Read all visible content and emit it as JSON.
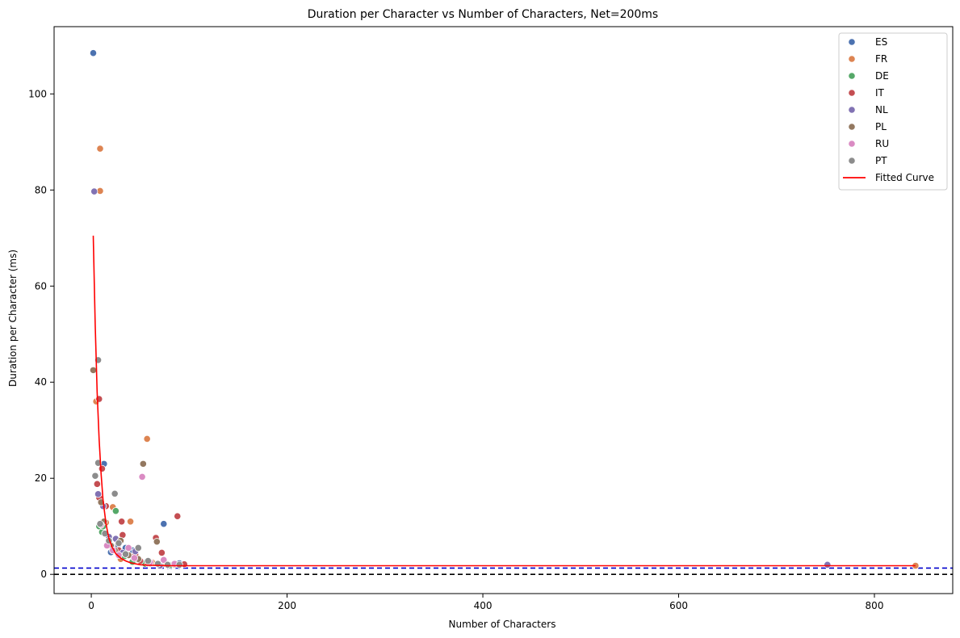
{
  "chart_data": {
    "type": "scatter",
    "title": "Duration per Character vs Number of Characters, Net=200ms",
    "xlabel": "Number of Characters",
    "ylabel": "Duration per Character (ms)",
    "xlim": [
      -38,
      880
    ],
    "ylim": [
      -4,
      114
    ],
    "xticks": [
      0,
      200,
      400,
      600,
      800
    ],
    "yticks": [
      0,
      20,
      40,
      60,
      80,
      100
    ],
    "grid": false,
    "legend_position": "top-right",
    "series": [
      {
        "name": "ES",
        "color": "#4c72b0",
        "points": [
          [
            2,
            108.5
          ],
          [
            13,
            23
          ],
          [
            20,
            4.6
          ],
          [
            27,
            6
          ],
          [
            30,
            4.8
          ],
          [
            35,
            5.5
          ],
          [
            42,
            5
          ],
          [
            48,
            3
          ],
          [
            55,
            2.4
          ],
          [
            74,
            10.5
          ],
          [
            80,
            2
          ],
          [
            90,
            2.3
          ]
        ]
      },
      {
        "name": "FR",
        "color": "#dd8452",
        "points": [
          [
            5,
            36
          ],
          [
            9,
            88.6
          ],
          [
            9,
            79.8
          ],
          [
            12,
            11
          ],
          [
            15,
            10.8
          ],
          [
            22,
            14
          ],
          [
            30,
            3.2
          ],
          [
            40,
            11
          ],
          [
            45,
            3.5
          ],
          [
            57,
            28.2
          ],
          [
            62,
            2.5
          ],
          [
            75,
            2.2
          ],
          [
            90,
            2
          ],
          [
            842,
            1.8
          ]
        ]
      },
      {
        "name": "DE",
        "color": "#55a868",
        "points": [
          [
            8,
            10
          ],
          [
            11,
            8.8
          ],
          [
            12,
            10
          ],
          [
            18,
            7.5
          ],
          [
            25,
            13.2
          ],
          [
            28,
            7
          ],
          [
            34,
            3.8
          ],
          [
            42,
            2.6
          ],
          [
            55,
            2.2
          ],
          [
            70,
            2.1
          ],
          [
            80,
            1.9
          ]
        ]
      },
      {
        "name": "IT",
        "color": "#c44e52",
        "points": [
          [
            6,
            18.8
          ],
          [
            8,
            36.5
          ],
          [
            8,
            16
          ],
          [
            11,
            22
          ],
          [
            15,
            14.2
          ],
          [
            21,
            5.8
          ],
          [
            28,
            5
          ],
          [
            31,
            11
          ],
          [
            32,
            8.2
          ],
          [
            45,
            4.2
          ],
          [
            50,
            2.8
          ],
          [
            58,
            2.3
          ],
          [
            66,
            7.6
          ],
          [
            72,
            4.5
          ],
          [
            88,
            12.1
          ],
          [
            95,
            2.1
          ]
        ]
      },
      {
        "name": "NL",
        "color": "#8172b3",
        "points": [
          [
            3,
            79.7
          ],
          [
            7,
            16.7
          ],
          [
            12,
            14.2
          ],
          [
            18,
            7.8
          ],
          [
            25,
            7.4
          ],
          [
            32,
            4.5
          ],
          [
            45,
            4.8
          ],
          [
            60,
            2.3
          ],
          [
            70,
            1.8
          ],
          [
            752,
            2
          ]
        ]
      },
      {
        "name": "PL",
        "color": "#937860",
        "points": [
          [
            2,
            42.5
          ],
          [
            10,
            15
          ],
          [
            13,
            11
          ],
          [
            20,
            6
          ],
          [
            24,
            5
          ],
          [
            30,
            7
          ],
          [
            38,
            4
          ],
          [
            48,
            3.2
          ],
          [
            53,
            23
          ],
          [
            60,
            2.6
          ],
          [
            67,
            6.8
          ],
          [
            85,
            2
          ]
        ]
      },
      {
        "name": "RU",
        "color": "#da8bc3",
        "points": [
          [
            10,
            10.3
          ],
          [
            16,
            6
          ],
          [
            22,
            5
          ],
          [
            28,
            4
          ],
          [
            38,
            5.5
          ],
          [
            44,
            3.4
          ],
          [
            52,
            20.3
          ],
          [
            60,
            2.5
          ],
          [
            74,
            3
          ],
          [
            85,
            2.2
          ]
        ]
      },
      {
        "name": "PT",
        "color": "#8c8c8c",
        "points": [
          [
            4,
            20.5
          ],
          [
            7,
            44.6
          ],
          [
            7,
            23.2
          ],
          [
            9,
            10.5
          ],
          [
            14,
            8.5
          ],
          [
            18,
            7
          ],
          [
            24,
            16.8
          ],
          [
            28,
            6.5
          ],
          [
            35,
            4.2
          ],
          [
            48,
            5.5
          ],
          [
            58,
            2.8
          ],
          [
            68,
            2.2
          ],
          [
            78,
            2
          ],
          [
            90,
            2
          ]
        ]
      }
    ],
    "fitted_curve": {
      "name": "Fitted Curve",
      "color": "#ff0000",
      "x": [
        2,
        4,
        6,
        8,
        10,
        12,
        15,
        18,
        21,
        25,
        30,
        35,
        40,
        50,
        60,
        80,
        100,
        200,
        400,
        600,
        842
      ],
      "y": [
        70.5,
        52,
        38,
        28,
        21,
        15.5,
        10.5,
        7.5,
        5.8,
        4.3,
        3.4,
        2.8,
        2.4,
        2.0,
        1.9,
        1.8,
        1.8,
        1.8,
        1.8,
        1.8,
        1.8
      ]
    },
    "reference_lines": [
      {
        "y": 1.3,
        "color": "#0000cc",
        "style": "dashed"
      },
      {
        "y": 0,
        "color": "#000000",
        "style": "dashed"
      }
    ]
  }
}
